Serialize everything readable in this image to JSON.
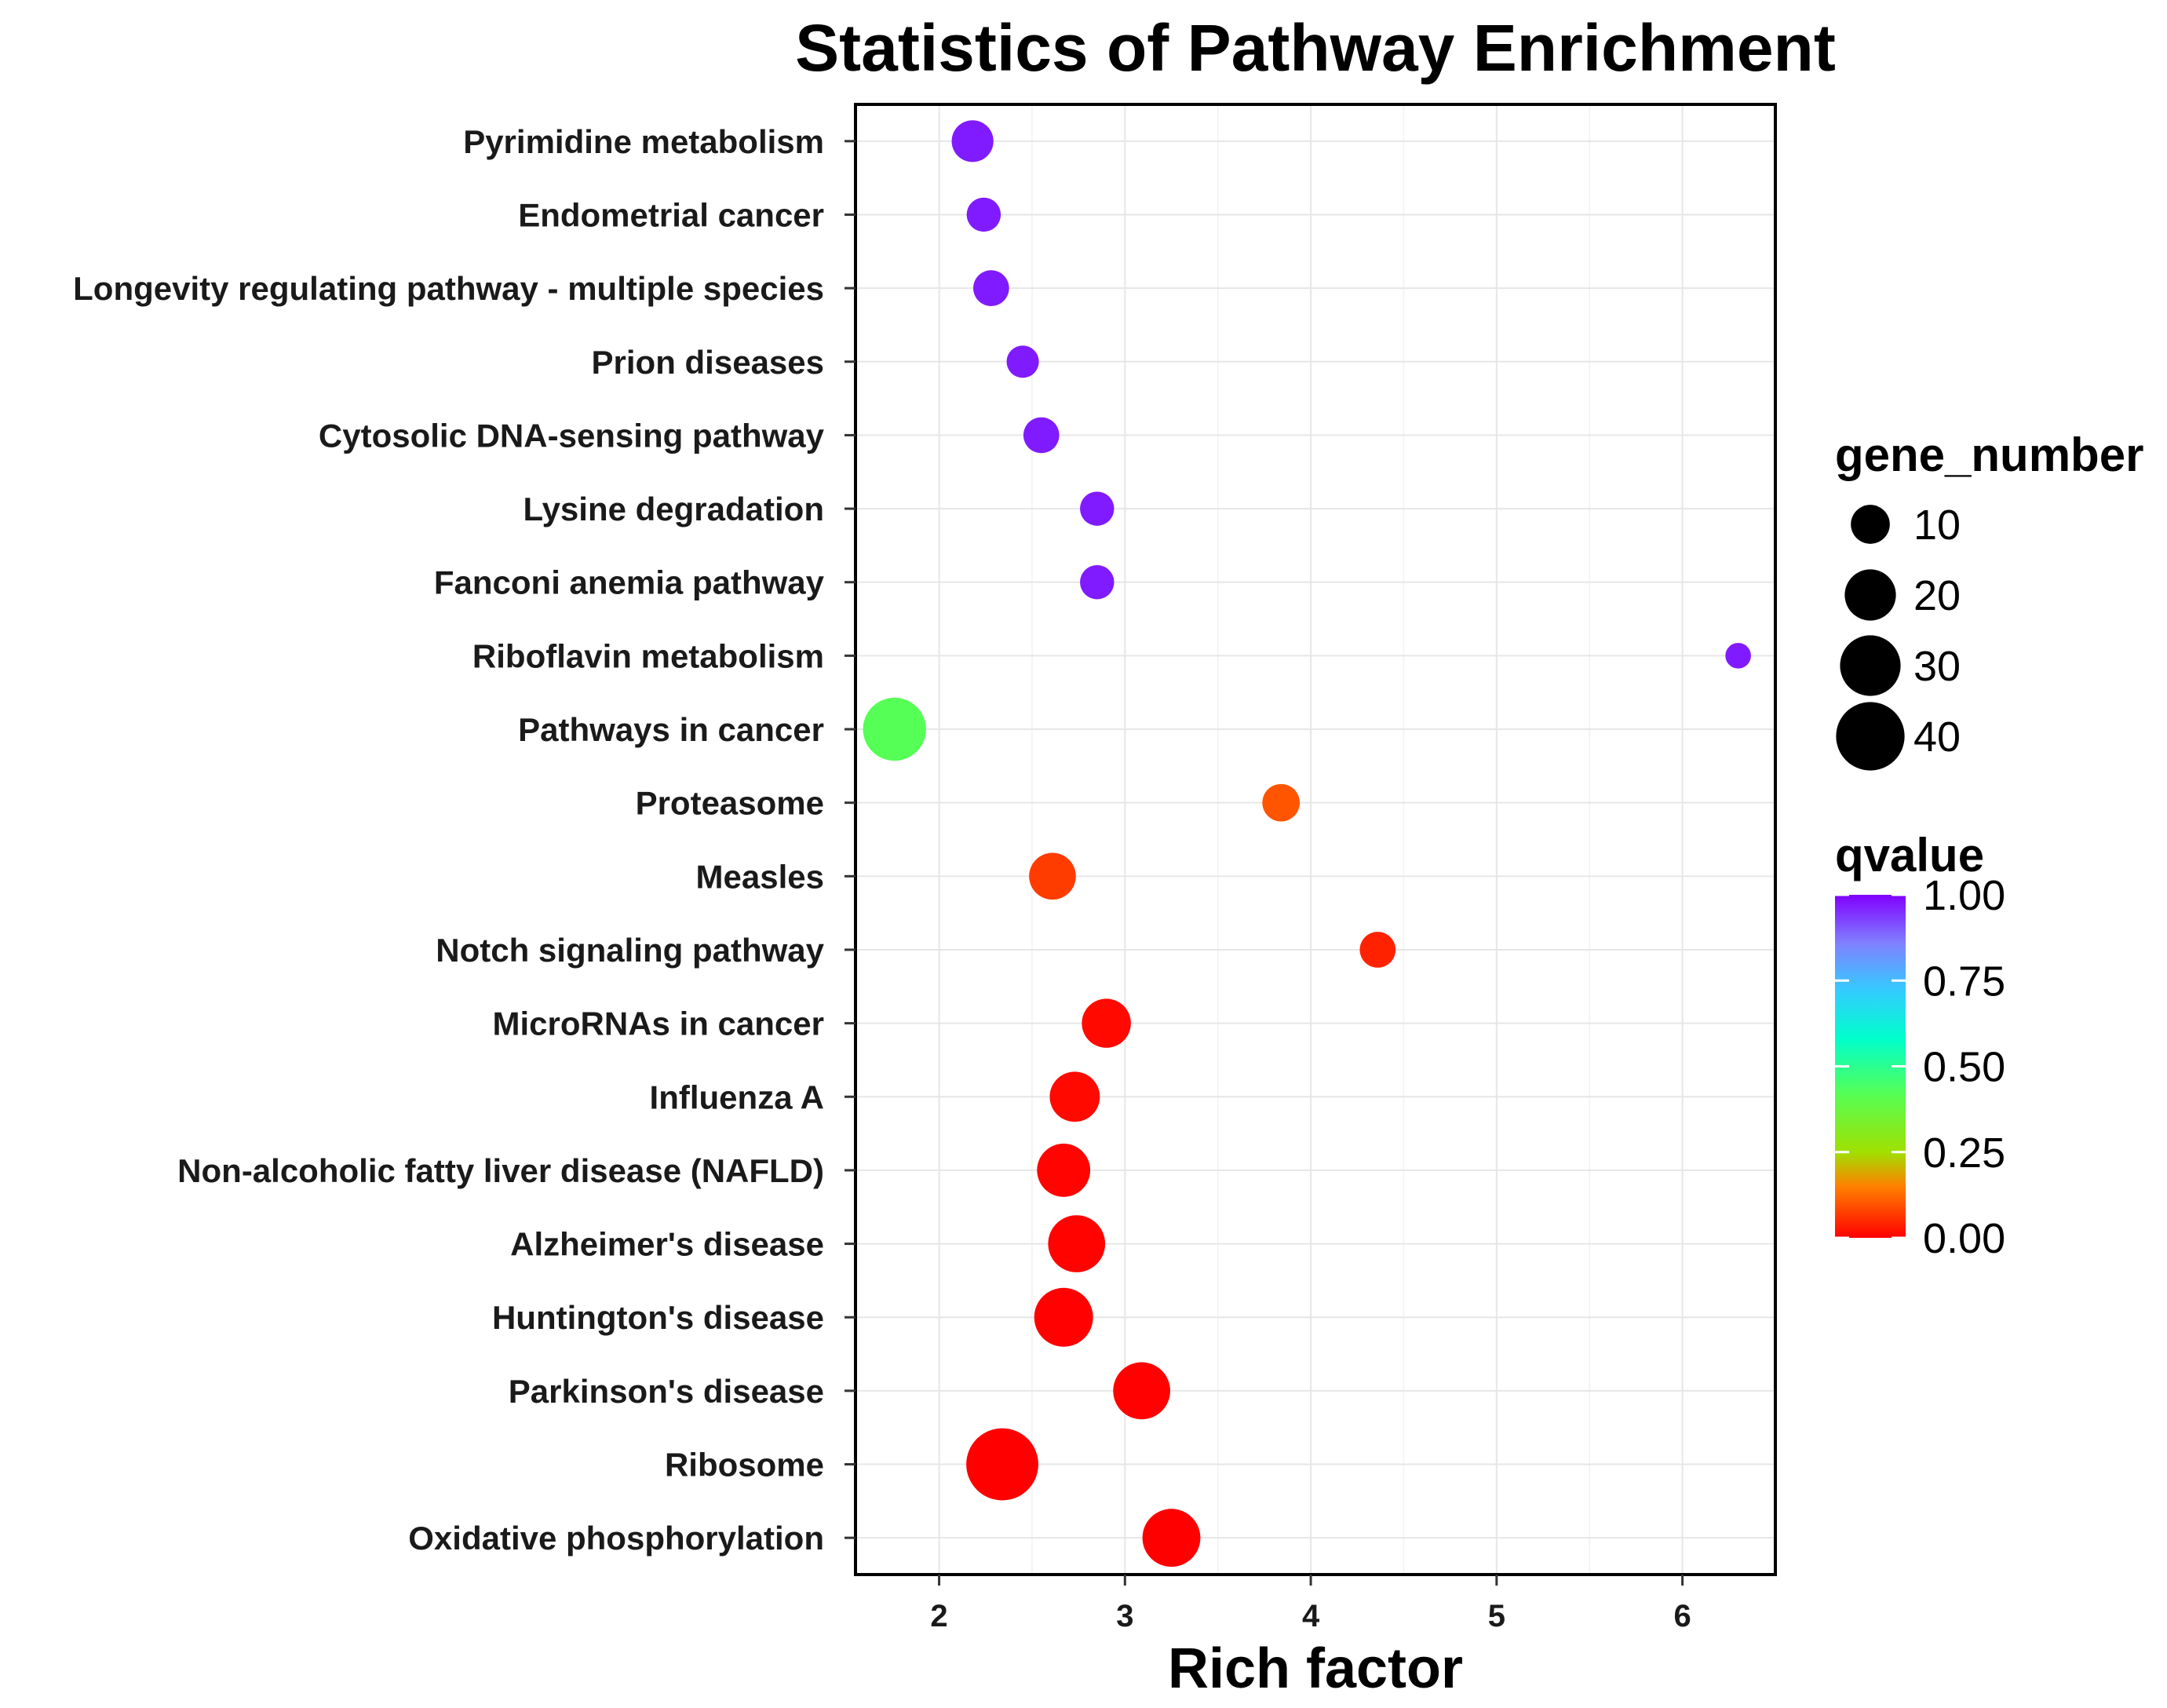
{
  "chart_data": {
    "type": "scatter",
    "title": "Statistics of Pathway Enrichment",
    "xlabel": "Rich factor",
    "ylabel": "",
    "xlim": [
      1.55,
      6.5
    ],
    "xticks": [
      2,
      3,
      4,
      5,
      6
    ],
    "grid": true,
    "categories": [
      "Pyrimidine metabolism",
      "Endometrial cancer",
      "Longevity regulating pathway - multiple species",
      "Prion diseases",
      "Cytosolic DNA-sensing pathway",
      "Lysine degradation",
      "Fanconi anemia pathway",
      "Riboflavin metabolism",
      "Pathways in cancer",
      "Proteasome",
      "Measles",
      "Notch signaling pathway",
      "MicroRNAs in cancer",
      "Influenza A",
      "Non-alcoholic fatty liver disease (NAFLD)",
      "Alzheimer's disease",
      "Huntington's disease",
      "Parkinson's disease",
      "Ribosome",
      "Oxidative phosphorylation"
    ],
    "points": [
      {
        "pathway": "Pyrimidine metabolism",
        "rich_factor": 2.18,
        "gene_number": 12,
        "qvalue": 0.97
      },
      {
        "pathway": "Endometrial cancer",
        "rich_factor": 2.24,
        "gene_number": 7,
        "qvalue": 0.97
      },
      {
        "pathway": "Longevity regulating pathway - multiple species",
        "rich_factor": 2.28,
        "gene_number": 8,
        "qvalue": 0.97
      },
      {
        "pathway": "Prion diseases",
        "rich_factor": 2.45,
        "gene_number": 6,
        "qvalue": 0.97
      },
      {
        "pathway": "Cytosolic DNA-sensing pathway",
        "rich_factor": 2.55,
        "gene_number": 8,
        "qvalue": 0.97
      },
      {
        "pathway": "Lysine degradation",
        "rich_factor": 2.85,
        "gene_number": 7,
        "qvalue": 0.97
      },
      {
        "pathway": "Fanconi anemia pathway",
        "rich_factor": 2.85,
        "gene_number": 7,
        "qvalue": 0.97
      },
      {
        "pathway": "Riboflavin metabolism",
        "rich_factor": 6.3,
        "gene_number": 3,
        "qvalue": 0.97
      },
      {
        "pathway": "Pathways in cancer",
        "rich_factor": 1.76,
        "gene_number": 33,
        "qvalue": 0.42
      },
      {
        "pathway": "Proteasome",
        "rich_factor": 3.84,
        "gene_number": 9,
        "qvalue": 0.1
      },
      {
        "pathway": "Measles",
        "rich_factor": 2.61,
        "gene_number": 16,
        "qvalue": 0.07
      },
      {
        "pathway": "Notch signaling pathway",
        "rich_factor": 4.36,
        "gene_number": 8,
        "qvalue": 0.04
      },
      {
        "pathway": "MicroRNAs in cancer",
        "rich_factor": 2.9,
        "gene_number": 18,
        "qvalue": 0.01
      },
      {
        "pathway": "Influenza A",
        "rich_factor": 2.73,
        "gene_number": 19,
        "qvalue": 0.01
      },
      {
        "pathway": "Non-alcoholic fatty liver disease (NAFLD)",
        "rich_factor": 2.67,
        "gene_number": 22,
        "qvalue": 0.005
      },
      {
        "pathway": "Alzheimer's disease",
        "rich_factor": 2.74,
        "gene_number": 26,
        "qvalue": 0.003
      },
      {
        "pathway": "Huntington's disease",
        "rich_factor": 2.67,
        "gene_number": 28,
        "qvalue": 0.002
      },
      {
        "pathway": "Parkinson's disease",
        "rich_factor": 3.09,
        "gene_number": 26,
        "qvalue": 0.001
      },
      {
        "pathway": "Ribosome",
        "rich_factor": 2.34,
        "gene_number": 45,
        "qvalue": 0.0
      },
      {
        "pathway": "Oxidative phosphorylation",
        "rich_factor": 3.25,
        "gene_number": 27,
        "qvalue": 0.0
      }
    ],
    "size_legend": {
      "title": "gene_number",
      "values": [
        10,
        20,
        30,
        40
      ],
      "labels": [
        "10",
        "20",
        "30",
        "40"
      ]
    },
    "color_legend": {
      "title": "qvalue",
      "ticks": [
        1.0,
        0.75,
        0.5,
        0.25,
        0.0
      ],
      "labels": [
        "1.00",
        "0.75",
        "0.50",
        "0.25",
        "0.00"
      ],
      "stops": [
        {
          "q": 0.0,
          "color": "#ff0000"
        },
        {
          "q": 0.15,
          "color": "#ff8000"
        },
        {
          "q": 0.25,
          "color": "#a0e000"
        },
        {
          "q": 0.42,
          "color": "#55ff55"
        },
        {
          "q": 0.58,
          "color": "#00ffcc"
        },
        {
          "q": 0.72,
          "color": "#33ccff"
        },
        {
          "q": 0.86,
          "color": "#8080ff"
        },
        {
          "q": 1.0,
          "color": "#8000ff"
        }
      ]
    }
  }
}
